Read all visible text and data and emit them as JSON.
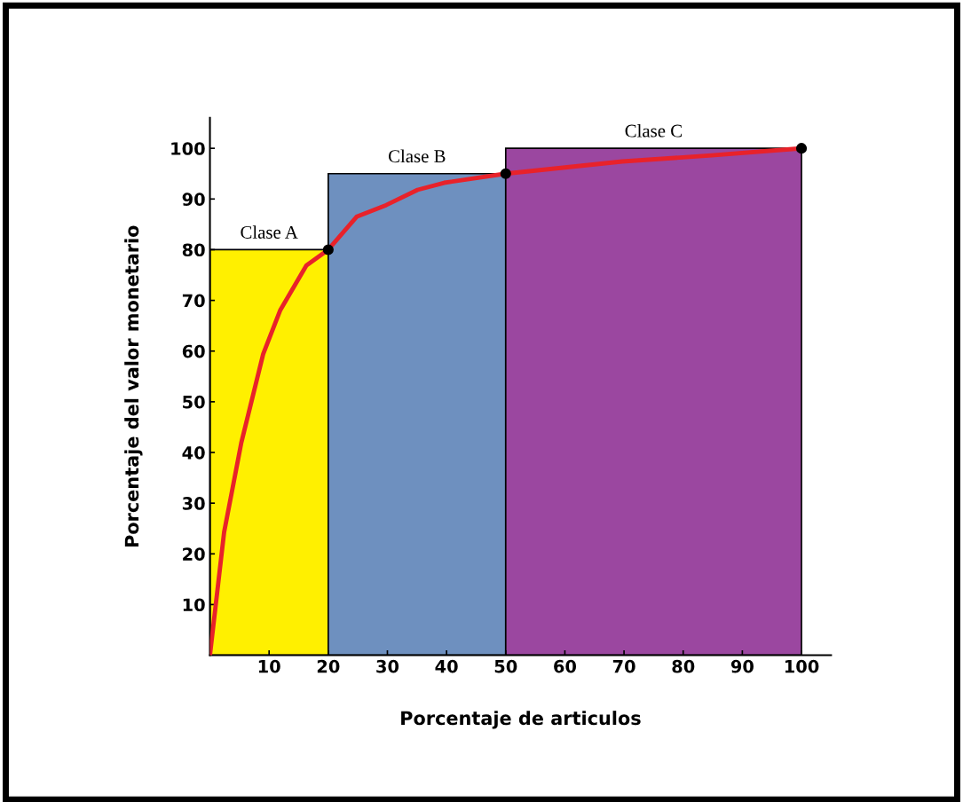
{
  "chart_data": {
    "type": "histogram",
    "xlabel": "Porcentaje de articulos",
    "ylabel": "Porcentaje del valor monetario",
    "bins": [
      0,
      20,
      50,
      100
    ],
    "values": [
      80,
      95,
      100
    ],
    "colors": [
      "#fff000",
      "#6e90bf",
      "#9b47a0"
    ],
    "series": [
      {
        "type": "line",
        "color": "#e8222a",
        "x": [
          0,
          2.4,
          5.3,
          9,
          11.9,
          16.3,
          20,
          24.8,
          29.8,
          35.1,
          39.6,
          50,
          69.7,
          84.8,
          100
        ],
        "values": [
          0,
          24.3,
          41.9,
          59.4,
          68.1,
          76.9,
          80,
          86.5,
          88.8,
          91.8,
          93.2,
          95,
          97.4,
          98.6,
          100
        ]
      },
      {
        "type": "scatter",
        "color": "#000000",
        "x": [
          20,
          50,
          100
        ],
        "values": [
          80,
          95,
          100
        ]
      }
    ],
    "annotations": [
      {
        "text": "Clase A",
        "x": 10,
        "y": 80
      },
      {
        "text": "Clase B",
        "x": 35,
        "y": 95
      },
      {
        "text": "Clase C",
        "x": 75,
        "y": 100
      }
    ],
    "xlim": [
      0,
      105
    ],
    "ylim": [
      0,
      106
    ],
    "xticks": [
      10,
      20,
      30,
      40,
      50,
      60,
      70,
      80,
      90,
      100
    ],
    "yticks": [
      10,
      20,
      30,
      40,
      50,
      60,
      70,
      80,
      90,
      100
    ],
    "grid": false
  }
}
